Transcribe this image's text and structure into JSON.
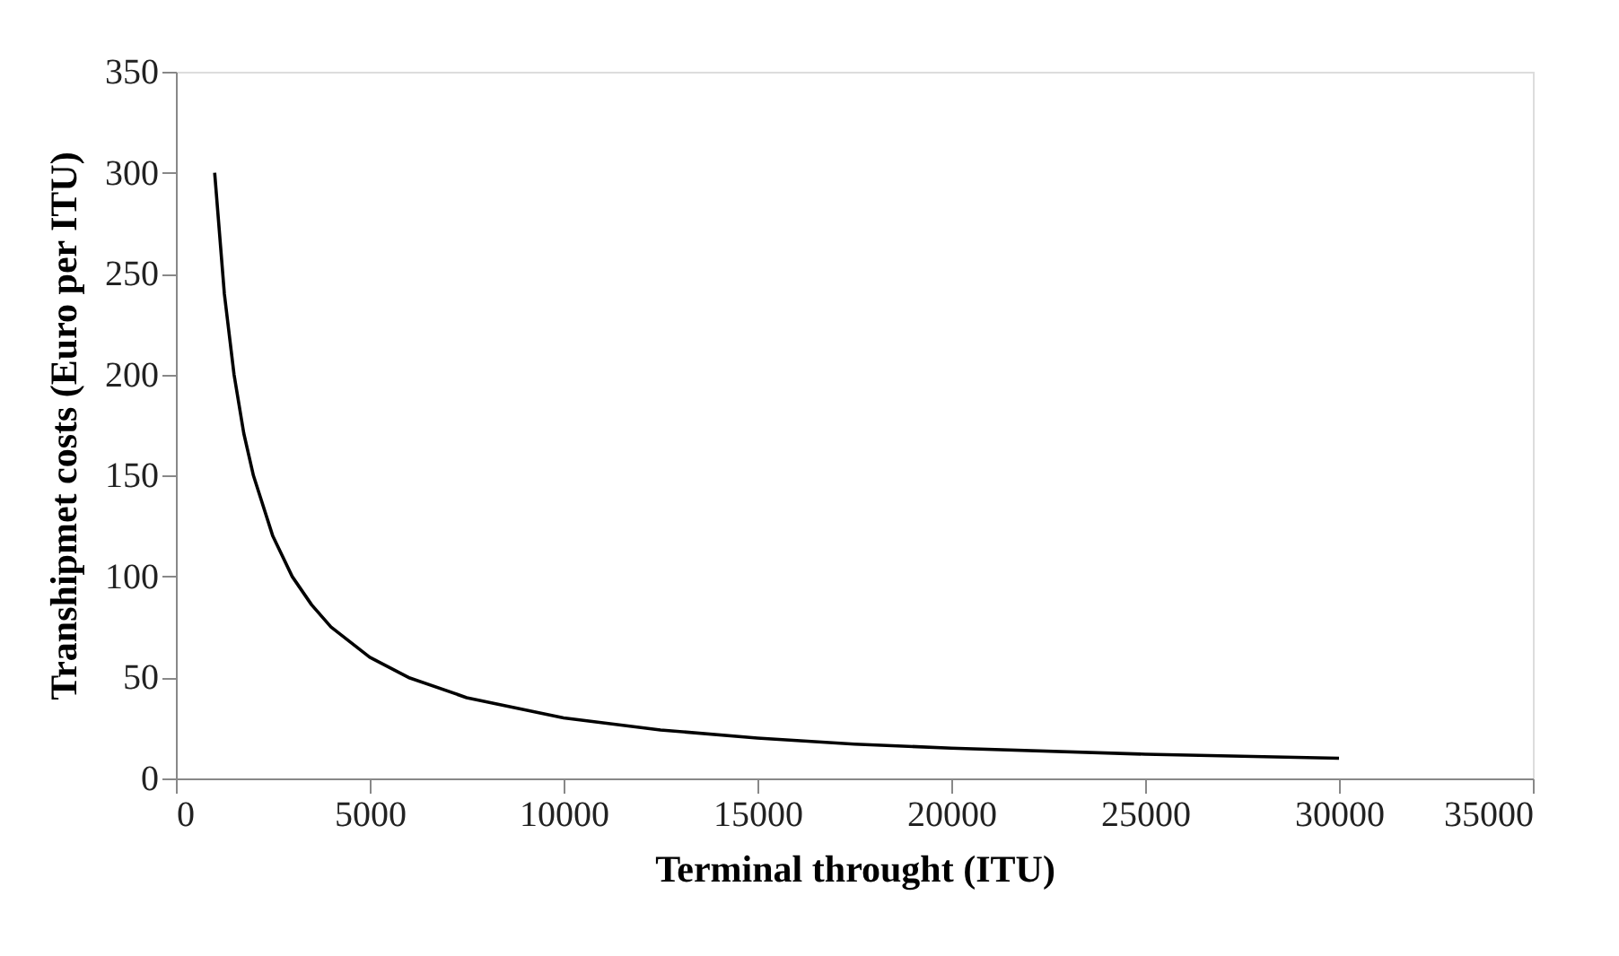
{
  "chart_data": {
    "type": "line",
    "xlabel": "Terminal throught (ITU)",
    "ylabel": "Transhipmet costs (Euro per ITU)",
    "x": [
      1000,
      1250,
      1500,
      1750,
      2000,
      2500,
      3000,
      3500,
      4000,
      5000,
      6000,
      7500,
      10000,
      12500,
      15000,
      17500,
      20000,
      25000,
      30000
    ],
    "series": [
      {
        "color": "#000000",
        "values": [
          300,
          240,
          200,
          171,
          150,
          120,
          100,
          86,
          75,
          60,
          50,
          40,
          30,
          24,
          20,
          17,
          15,
          12,
          10
        ]
      }
    ],
    "xlim": [
      0,
      35000
    ],
    "xticks": [
      0,
      5000,
      10000,
      15000,
      20000,
      25000,
      30000,
      35000
    ],
    "ylim": [
      0,
      350
    ],
    "yticks": [
      0,
      50,
      100,
      150,
      200,
      250,
      300,
      350
    ],
    "grid": false,
    "marker": "none",
    "line_style": "solid"
  }
}
